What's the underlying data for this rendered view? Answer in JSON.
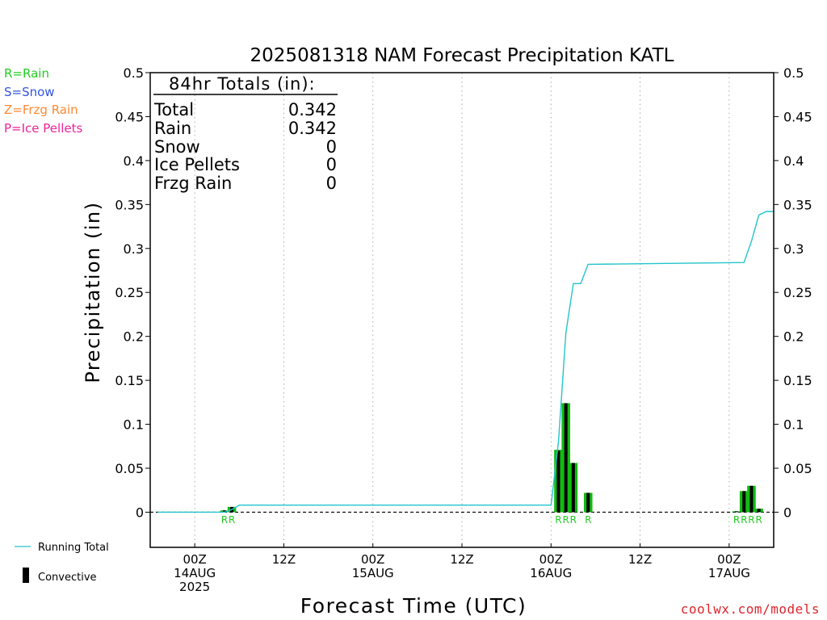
{
  "precip_types": [
    {
      "text": "R=Rain",
      "color": "#22cc22"
    },
    {
      "text": "S=Snow",
      "color": "#3355dd"
    },
    {
      "text": "Z=Frzg Rain",
      "color": "#ff8833"
    },
    {
      "text": "P=Ice Pellets",
      "color": "#ee2299"
    }
  ],
  "legend": {
    "running_total": "Running Total",
    "convective": "Convective"
  },
  "credit": "coolwx.com/models",
  "totals_box": {
    "header": "84hr Totals (in):",
    "rows": [
      {
        "label": "Total",
        "value": "0.342"
      },
      {
        "label": "Rain",
        "value": "0.342"
      },
      {
        "label": "Snow",
        "value": "0"
      },
      {
        "label": "Ice Pellets",
        "value": "0"
      },
      {
        "label": "Frzg Rain",
        "value": "0"
      }
    ]
  },
  "colors": {
    "running_total": "#22c4cc",
    "convective": "#000000",
    "total_bar": "#11bb11",
    "rain_code": "#22cc22",
    "grid": "#aaaaaa"
  },
  "chart_data": {
    "type": "bar",
    "title": "2025081318 NAM Forecast Precipitation KATL",
    "xlabel": "Forecast Time (UTC)",
    "ylabel": "Precipitation (in)",
    "x_unit": "hours after 2025-08-13 18Z",
    "xlim": [
      0,
      84
    ],
    "ylim": [
      -0.04,
      0.5
    ],
    "yticks": [
      0,
      0.05,
      0.1,
      0.15,
      0.2,
      0.25,
      0.3,
      0.35,
      0.4,
      0.45,
      0.5
    ],
    "ytick_labels": [
      "0",
      "0.05",
      "0.1",
      "0.15",
      "0.2",
      "0.25",
      "0.3",
      "0.35",
      "0.4",
      "0.45",
      "0.5"
    ],
    "grid": "vertical dotted at x ticks",
    "x_ticks": [
      {
        "x": 6,
        "lines": [
          "00Z",
          "14AUG",
          "2025"
        ]
      },
      {
        "x": 18,
        "lines": [
          "12Z"
        ]
      },
      {
        "x": 30,
        "lines": [
          "00Z",
          "15AUG"
        ]
      },
      {
        "x": 42,
        "lines": [
          "12Z"
        ]
      },
      {
        "x": 54,
        "lines": [
          "00Z",
          "16AUG"
        ]
      },
      {
        "x": 66,
        "lines": [
          "12Z"
        ]
      },
      {
        "x": 78,
        "lines": [
          "00Z",
          "17AUG"
        ]
      }
    ],
    "bars": [
      {
        "x": 10,
        "total": 0.002,
        "convective": 0.002,
        "code": "R"
      },
      {
        "x": 11,
        "total": 0.006,
        "convective": 0.006,
        "code": "R"
      },
      {
        "x": 55,
        "total": 0.071,
        "convective": 0.07,
        "code": "R"
      },
      {
        "x": 56,
        "total": 0.124,
        "convective": 0.124,
        "code": "R"
      },
      {
        "x": 57,
        "total": 0.056,
        "convective": 0.056,
        "code": "R"
      },
      {
        "x": 59,
        "total": 0.022,
        "convective": 0.022,
        "code": "R"
      },
      {
        "x": 79,
        "total": 0.001,
        "convective": 0.001,
        "code": "R"
      },
      {
        "x": 80,
        "total": 0.024,
        "convective": 0.024,
        "code": "R"
      },
      {
        "x": 81,
        "total": 0.03,
        "convective": 0.03,
        "code": "R"
      },
      {
        "x": 82,
        "total": 0.004,
        "convective": 0.004,
        "code": "R"
      }
    ],
    "running_total": {
      "name": "Running Total",
      "x": [
        1,
        10,
        11,
        12,
        54,
        55,
        56,
        57,
        58,
        59,
        80,
        81,
        82,
        83,
        84
      ],
      "y": [
        0,
        0,
        0.003,
        0.008,
        0.008,
        0.08,
        0.204,
        0.26,
        0.26,
        0.282,
        0.284,
        0.308,
        0.338,
        0.342,
        0.342
      ]
    }
  }
}
